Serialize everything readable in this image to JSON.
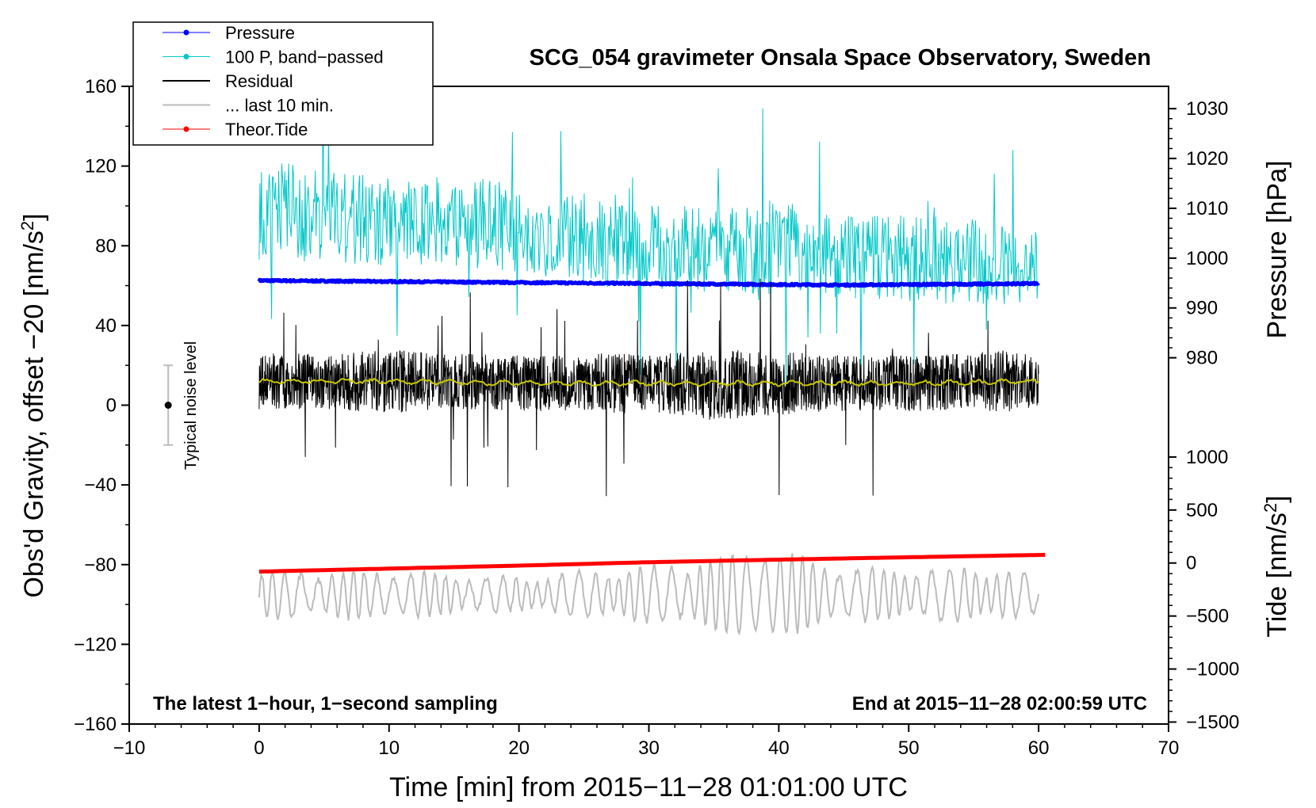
{
  "chart_data": {
    "type": "line",
    "title": "SCG_054 gravimeter Onsala Space Observatory, Sweden",
    "xlabel": "Time [min] from 2015−11−28 01:01:00 UTC",
    "ylabel": "Obs'd Gravity, offset −20 [nm/s",
    "ylabel_sup": "2",
    "ylabel_end": "]",
    "y2label": "Pressure [hPa]",
    "y3label": "Tide [nm/s",
    "y3label_sup": "2",
    "y3label_end": "]",
    "xlim": [
      -10,
      70
    ],
    "ylim": [
      -160,
      160
    ],
    "x_ticks": [
      -10,
      0,
      10,
      20,
      30,
      40,
      50,
      60,
      70
    ],
    "x_tick_labels": [
      "−10",
      "0",
      "10",
      "20",
      "30",
      "40",
      "50",
      "60",
      "70"
    ],
    "y_ticks": [
      160,
      120,
      80,
      40,
      0,
      -40,
      -80,
      -120,
      -160
    ],
    "y_tick_labels": [
      "160",
      "120",
      "80",
      "40",
      "0",
      "−40",
      "−80",
      "−120",
      "−160"
    ],
    "pressure_axis": {
      "map_value_a": 1000,
      "map_gravity_a": 73.8,
      "map_value_b": 980,
      "map_gravity_b": 23.8,
      "ticks": [
        1030,
        1020,
        1010,
        1000,
        990,
        980
      ],
      "tick_labels": [
        "1030",
        "1020",
        "1010",
        "1000",
        "990",
        "980"
      ]
    },
    "tide_axis": {
      "map_value_a": 0,
      "map_gravity_a": -79.2,
      "map_value_b": 1000,
      "map_gravity_b": -26.0,
      "ticks": [
        1000,
        500,
        0,
        -500,
        -1000,
        -1500
      ],
      "tick_labels": [
        "1000",
        "500",
        "0",
        "−500",
        "−1000",
        "−1500"
      ]
    },
    "legend": [
      {
        "label": "Pressure",
        "color": "#0000ff",
        "marker": true
      },
      {
        "label": "100 P, band−passed",
        "color": "#00c8c8",
        "marker": true
      },
      {
        "label": "Residual",
        "color": "#000000",
        "marker": false
      },
      {
        "label": "... last 10 min.",
        "color": "#bbbbbb",
        "marker": false
      },
      {
        "label": "Theor.Tide",
        "color": "#ff0000",
        "marker": true
      }
    ],
    "series": [
      {
        "name": "Pressure",
        "axis": "pressure",
        "color": "#0000ff",
        "x": [
          0,
          10,
          20,
          30,
          40,
          45,
          50,
          56,
          60
        ],
        "y": [
          995.5,
          995.3,
          995.1,
          994.9,
          994.7,
          994.6,
          994.7,
          994.8,
          994.9
        ]
      },
      {
        "name": "100 P, band−passed",
        "axis": "gravity",
        "color": "#00c8c8",
        "x": [
          0,
          2,
          4,
          10,
          16,
          17,
          20,
          24,
          27,
          30,
          36,
          39,
          40,
          45,
          50,
          56,
          60
        ],
        "y": [
          95,
          98,
          95,
          92,
          90,
          92,
          86,
          84,
          83,
          80,
          78,
          77,
          78,
          76,
          74,
          72,
          70
        ],
        "amplitude": [
          22,
          24,
          24,
          22,
          22,
          26,
          20,
          22,
          24,
          22,
          22,
          26,
          24,
          22,
          22,
          22,
          20
        ]
      },
      {
        "name": "Residual",
        "axis": "gravity",
        "color": "#000000",
        "x": [
          0,
          5,
          10,
          15,
          20,
          25,
          27,
          30,
          35,
          40,
          45,
          50,
          55,
          57,
          60
        ],
        "y": [
          12,
          12,
          12,
          12,
          11,
          11,
          11,
          11,
          10,
          11,
          11,
          11,
          12,
          12,
          12
        ],
        "amplitude": [
          14,
          14,
          16,
          14,
          14,
          14,
          16,
          14,
          18,
          16,
          14,
          14,
          14,
          16,
          14
        ]
      },
      {
        "name": "... last 10 min.",
        "axis": "gravity",
        "color": "#bbbbbb",
        "x": [
          0,
          5,
          10,
          15,
          20,
          25,
          30,
          35,
          39,
          40,
          45,
          50,
          55,
          60
        ],
        "y": [
          -95,
          -95,
          -95,
          -95,
          -95,
          -95,
          -95,
          -95,
          -95,
          -95,
          -95,
          -95,
          -95,
          -95
        ],
        "amplitude": [
          12,
          12,
          12,
          10,
          8,
          12,
          14,
          18,
          26,
          22,
          14,
          12,
          14,
          10
        ]
      },
      {
        "name": "Smoothed residual",
        "axis": "gravity",
        "color": "#c8c800",
        "x": [
          0,
          10,
          20,
          30,
          40,
          50,
          60
        ],
        "y": [
          12,
          12,
          11,
          11,
          11,
          11,
          12
        ]
      },
      {
        "name": "Theor.Tide",
        "axis": "gravity",
        "color": "#ff0000",
        "x": [
          0,
          10,
          20,
          30,
          40,
          50,
          60.5
        ],
        "y": [
          -83.5,
          -82.0,
          -80.5,
          -78.8,
          -77.5,
          -76.3,
          -75.1
        ]
      }
    ],
    "noise_bar": {
      "label": "Typical noise level",
      "x": -7,
      "y": 0,
      "low": -20,
      "high": 20
    },
    "annotations": {
      "bottom_left": "The latest 1−hour, 1−second sampling",
      "bottom_right": "End at 2015−11−28 02:00:59 UTC"
    }
  }
}
